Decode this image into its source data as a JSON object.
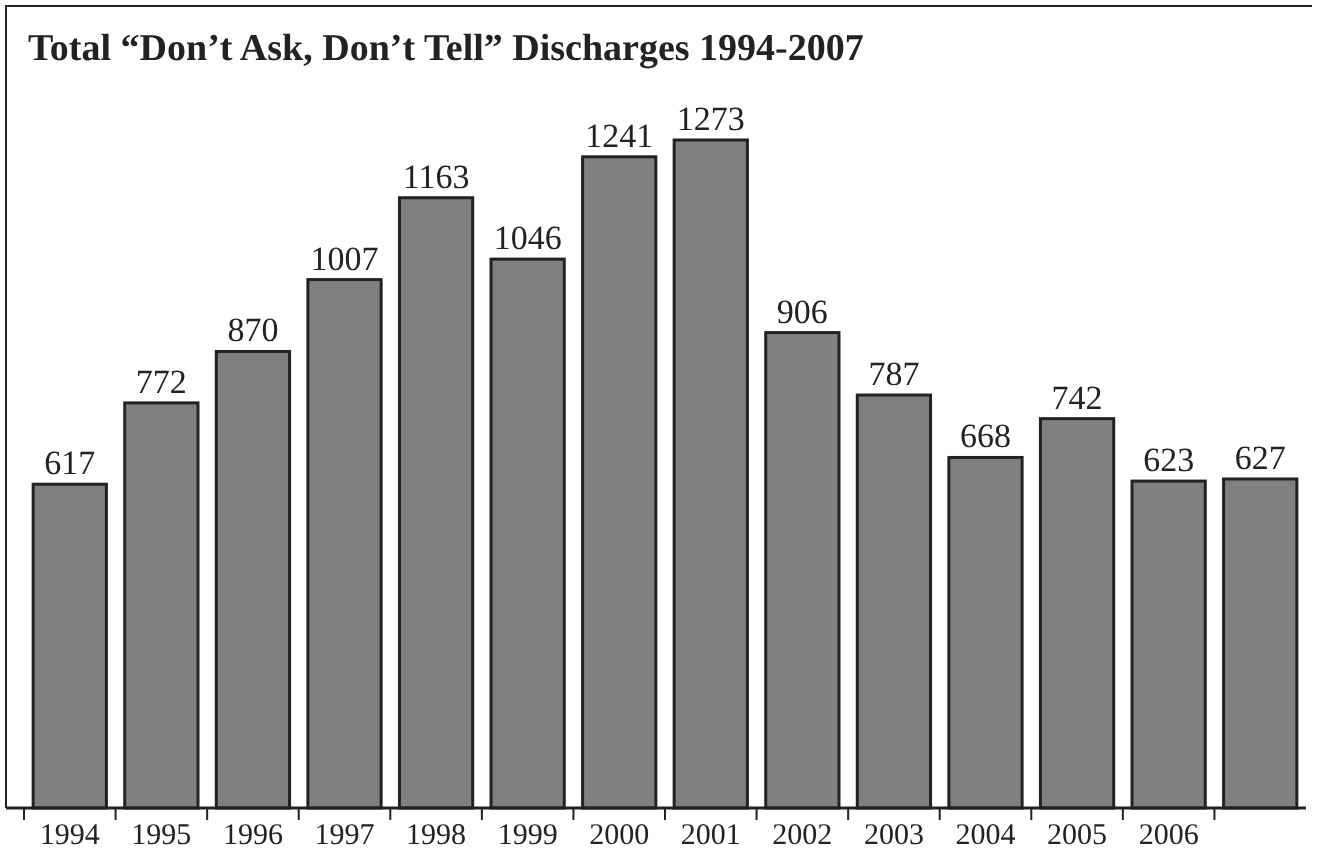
{
  "chart_data": {
    "type": "bar",
    "title": "Total “Don’t Ask, Don’t Tell” Discharges 1994-2007",
    "categories": [
      "1994",
      "1995",
      "1996",
      "1997",
      "1998",
      "1999",
      "2000",
      "2001",
      "2002",
      "2003",
      "2004",
      "2005",
      "2006",
      null
    ],
    "values": [
      617,
      772,
      870,
      1007,
      1163,
      1046,
      1241,
      1273,
      906,
      787,
      668,
      742,
      623,
      627
    ],
    "color": "#808080",
    "data_labels": true
  }
}
